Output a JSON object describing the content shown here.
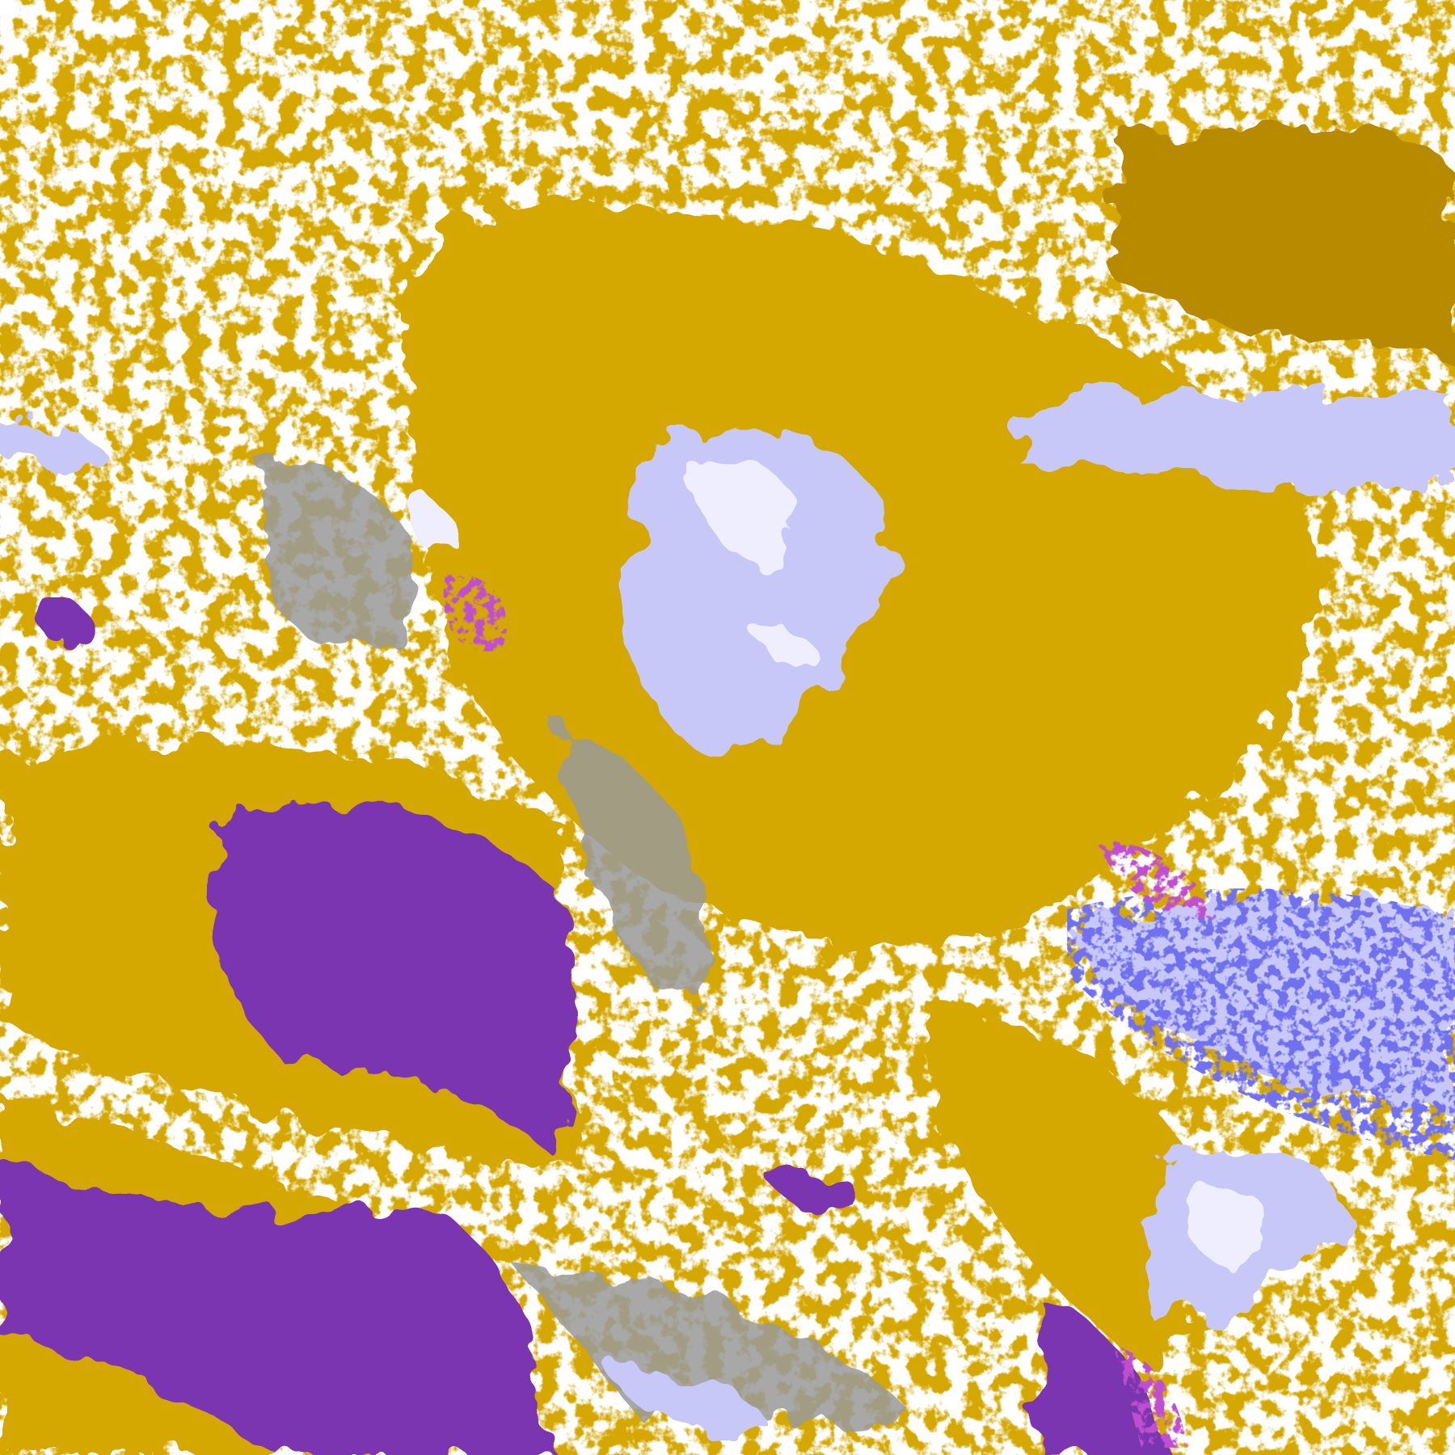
{
  "image": {
    "kind": "satellite cloud classification composite",
    "palette": {
      "clear": "#ffffff",
      "low_cloud_gold": "#d4a800",
      "low_cloud_dark_gold": "#b88a00",
      "thin_cloud_gray": "#9a9a9a",
      "high_cloud_lavender": "#c8c8f8",
      "very_high_cloud_white": "#eeeeff",
      "deep_cloud_blue": "#7070f0",
      "convective_magenta": "#c050d0",
      "stratus_purple": "#7b35b0"
    }
  }
}
